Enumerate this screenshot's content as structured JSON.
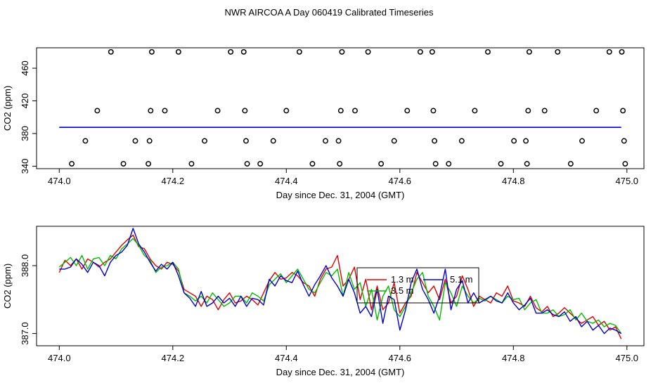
{
  "title": "NWR AIRCOA A  Day 060419  Calibrated Timeseries",
  "colors": {
    "axis": "#000000",
    "series_1_3m": "#dd0000",
    "series_3_5m": "#00bb00",
    "series_5_1m": "#0000cc"
  },
  "chart_data": [
    {
      "type": "scatter",
      "title": "",
      "xlabel": "Day since Dec. 31, 2004 (GMT)",
      "ylabel": "CO2 (ppm)",
      "xlim": [
        473.96,
        475.03
      ],
      "ylim": [
        337,
        485
      ],
      "xticks": [
        474.0,
        474.2,
        474.4,
        474.6,
        474.8,
        475.0
      ],
      "xtick_labels": [
        "474.0",
        "474.2",
        "474.4",
        "474.6",
        "474.8",
        "475.0"
      ],
      "yticks": [
        340,
        380,
        420,
        460
      ],
      "ytick_labels": [
        "340",
        "380",
        "420",
        "460"
      ],
      "grid": false,
      "points": [
        [
          474.022,
          343
        ],
        [
          474.046,
          371
        ],
        [
          474.067,
          408
        ],
        [
          474.091,
          480
        ],
        [
          474.113,
          343
        ],
        [
          474.134,
          371
        ],
        [
          474.157,
          343
        ],
        [
          474.159,
          371
        ],
        [
          474.161,
          408
        ],
        [
          474.163,
          480
        ],
        [
          474.186,
          408
        ],
        [
          474.21,
          480
        ],
        [
          474.233,
          343
        ],
        [
          474.256,
          371
        ],
        [
          474.279,
          408
        ],
        [
          474.302,
          480
        ],
        [
          474.325,
          480
        ],
        [
          474.327,
          408
        ],
        [
          474.329,
          371
        ],
        [
          474.331,
          343
        ],
        [
          474.354,
          343
        ],
        [
          474.377,
          371
        ],
        [
          474.4,
          408
        ],
        [
          474.423,
          480
        ],
        [
          474.446,
          343
        ],
        [
          474.469,
          371
        ],
        [
          474.492,
          371
        ],
        [
          474.494,
          343
        ],
        [
          474.496,
          408
        ],
        [
          474.498,
          480
        ],
        [
          474.521,
          408
        ],
        [
          474.544,
          480
        ],
        [
          474.567,
          343
        ],
        [
          474.59,
          371
        ],
        [
          474.613,
          408
        ],
        [
          474.636,
          480
        ],
        [
          474.657,
          480
        ],
        [
          474.659,
          408
        ],
        [
          474.661,
          371
        ],
        [
          474.663,
          343
        ],
        [
          474.686,
          343
        ],
        [
          474.709,
          371
        ],
        [
          474.732,
          408
        ],
        [
          474.755,
          480
        ],
        [
          474.778,
          343
        ],
        [
          474.801,
          371
        ],
        [
          474.822,
          371
        ],
        [
          474.824,
          343
        ],
        [
          474.826,
          408
        ],
        [
          474.828,
          480
        ],
        [
          474.855,
          408
        ],
        [
          474.878,
          480
        ],
        [
          474.901,
          343
        ],
        [
          474.921,
          371
        ],
        [
          474.946,
          408
        ],
        [
          474.969,
          480
        ],
        [
          474.991,
          480
        ],
        [
          474.993,
          408
        ],
        [
          474.995,
          371
        ],
        [
          474.997,
          343
        ]
      ],
      "baseline": {
        "name": "",
        "x_start": 474.0,
        "x_end": 474.99,
        "value": 387.6
      }
    },
    {
      "type": "line",
      "title": "",
      "xlabel": "Day since Dec. 31, 2004 (GMT)",
      "ylabel": "CO2 (ppm)",
      "xlim": [
        473.96,
        475.03
      ],
      "ylim": [
        386.82,
        388.58
      ],
      "xticks": [
        474.0,
        474.2,
        474.4,
        474.6,
        474.8,
        475.0
      ],
      "xtick_labels": [
        "474.0",
        "474.2",
        "474.4",
        "474.6",
        "474.8",
        "475.0"
      ],
      "yticks": [
        387.0,
        388.0
      ],
      "ytick_labels": [
        "387.0",
        "388.0"
      ],
      "grid": false,
      "legend": "center",
      "x": [
        474.0,
        474.01,
        474.02,
        474.03,
        474.04,
        474.05,
        474.06,
        474.07,
        474.08,
        474.09,
        474.1,
        474.11,
        474.12,
        474.13,
        474.14,
        474.15,
        474.16,
        474.17,
        474.18,
        474.19,
        474.2,
        474.21,
        474.22,
        474.23,
        474.24,
        474.25,
        474.26,
        474.27,
        474.28,
        474.29,
        474.3,
        474.31,
        474.32,
        474.33,
        474.34,
        474.35,
        474.36,
        474.37,
        474.38,
        474.39,
        474.4,
        474.41,
        474.42,
        474.43,
        474.44,
        474.45,
        474.46,
        474.47,
        474.48,
        474.49,
        474.5,
        474.51,
        474.52,
        474.53,
        474.54,
        474.55,
        474.56,
        474.57,
        474.58,
        474.59,
        474.6,
        474.61,
        474.62,
        474.63,
        474.64,
        474.65,
        474.66,
        474.67,
        474.68,
        474.69,
        474.7,
        474.71,
        474.72,
        474.73,
        474.74,
        474.75,
        474.76,
        474.77,
        474.78,
        474.79,
        474.8,
        474.81,
        474.82,
        474.83,
        474.84,
        474.85,
        474.86,
        474.87,
        474.88,
        474.89,
        474.9,
        474.91,
        474.92,
        474.93,
        474.94,
        474.95,
        474.96,
        474.97,
        474.98,
        474.99
      ],
      "series": [
        {
          "name": "1.3 m",
          "color": "#dd0000",
          "values": [
            387.9,
            388.08,
            388.0,
            388.1,
            387.95,
            388.1,
            388.05,
            387.98,
            388.05,
            388.1,
            388.2,
            388.3,
            388.38,
            388.45,
            388.28,
            388.25,
            388.1,
            388.0,
            387.95,
            388.05,
            388.02,
            387.92,
            387.65,
            387.6,
            387.55,
            387.4,
            387.55,
            387.5,
            387.35,
            387.5,
            387.6,
            387.45,
            387.48,
            387.55,
            387.5,
            387.42,
            387.6,
            387.78,
            387.9,
            387.8,
            387.82,
            387.9,
            387.85,
            387.75,
            387.7,
            387.55,
            387.8,
            387.95,
            387.98,
            388.15,
            387.7,
            387.8,
            387.98,
            387.5,
            387.8,
            387.35,
            387.7,
            387.35,
            387.45,
            387.75,
            387.3,
            387.45,
            387.55,
            387.9,
            387.75,
            387.6,
            387.7,
            387.5,
            387.8,
            387.45,
            387.55,
            387.85,
            387.65,
            387.4,
            387.55,
            387.5,
            387.45,
            387.6,
            387.55,
            387.7,
            387.48,
            387.45,
            387.4,
            387.55,
            387.38,
            387.32,
            387.4,
            387.25,
            387.3,
            387.38,
            387.3,
            387.22,
            387.15,
            387.2,
            387.25,
            387.12,
            387.18,
            387.05,
            387.1,
            386.92
          ]
        },
        {
          "name": "3.5 m",
          "color": "#00bb00",
          "values": [
            387.98,
            388.05,
            388.12,
            388.0,
            388.15,
            387.95,
            388.1,
            388.12,
            388.0,
            388.15,
            388.1,
            388.25,
            388.32,
            388.4,
            388.3,
            388.15,
            388.08,
            387.9,
            387.98,
            388.0,
            388.05,
            387.95,
            387.6,
            387.55,
            387.48,
            387.55,
            387.45,
            387.6,
            387.5,
            387.4,
            387.45,
            387.55,
            387.55,
            387.45,
            387.6,
            387.55,
            387.48,
            387.72,
            387.8,
            387.88,
            387.75,
            387.85,
            387.95,
            387.8,
            387.65,
            387.6,
            387.75,
            387.9,
            387.85,
            387.95,
            387.55,
            387.9,
            387.65,
            387.75,
            387.4,
            387.65,
            387.2,
            387.55,
            387.7,
            387.35,
            387.25,
            387.4,
            387.6,
            387.8,
            387.9,
            387.55,
            387.4,
            387.2,
            387.75,
            387.6,
            387.4,
            387.7,
            387.55,
            387.45,
            387.52,
            387.48,
            387.55,
            387.5,
            387.45,
            387.55,
            387.5,
            387.52,
            387.35,
            387.45,
            387.5,
            387.3,
            387.3,
            387.35,
            387.25,
            387.28,
            387.35,
            387.2,
            387.3,
            387.18,
            387.15,
            387.2,
            387.1,
            387.15,
            387.12,
            387.0
          ]
        },
        {
          "name": "5.1 m",
          "color": "#0000cc",
          "values": [
            387.95,
            387.95,
            387.98,
            388.1,
            388.02,
            387.9,
            388.05,
            388.0,
            387.85,
            388.05,
            388.15,
            388.2,
            388.3,
            388.55,
            388.32,
            388.2,
            388.05,
            387.92,
            388.02,
            387.95,
            388.05,
            387.85,
            387.6,
            387.52,
            387.4,
            387.62,
            387.4,
            387.45,
            387.55,
            387.45,
            387.52,
            387.4,
            387.55,
            387.4,
            387.52,
            387.5,
            387.42,
            387.8,
            387.7,
            387.85,
            387.78,
            387.75,
            387.92,
            387.72,
            387.55,
            387.72,
            387.85,
            388.0,
            387.82,
            387.7,
            387.55,
            387.8,
            387.6,
            387.3,
            387.4,
            387.25,
            387.65,
            387.15,
            387.55,
            387.5,
            387.05,
            387.35,
            387.75,
            387.95,
            387.65,
            387.5,
            387.3,
            387.55,
            387.95,
            387.35,
            387.65,
            387.78,
            387.45,
            387.6,
            387.45,
            387.5,
            387.55,
            387.48,
            387.45,
            387.6,
            387.45,
            387.35,
            387.42,
            387.52,
            387.3,
            387.3,
            387.35,
            387.28,
            387.25,
            387.32,
            387.18,
            387.25,
            387.1,
            387.18,
            387.05,
            387.12,
            387.0,
            387.08,
            387.05,
            387.0
          ]
        }
      ]
    }
  ]
}
